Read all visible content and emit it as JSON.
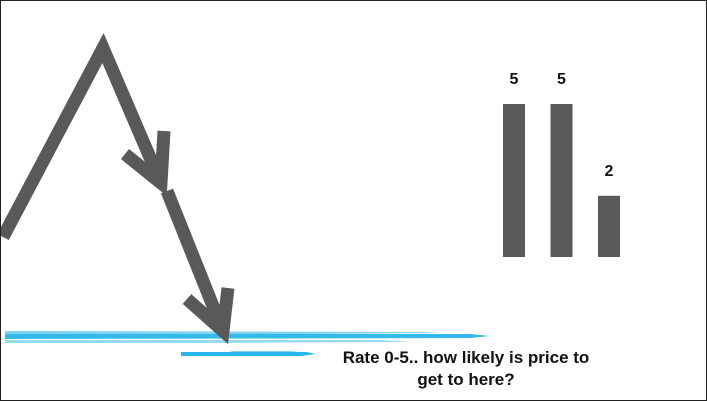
{
  "chart_data": {
    "type": "bar",
    "categories": [
      "",
      "",
      ""
    ],
    "values": [
      5,
      5,
      2
    ],
    "ylim": [
      0,
      5
    ],
    "title": "",
    "xlabel": "",
    "ylabel": "",
    "grid": false,
    "bar_color": "#5a5a5a"
  },
  "caption": {
    "line1": "Rate 0-5.. how likely is price to",
    "line2": "get to here?"
  },
  "colors": {
    "arrow": "#595959",
    "target_line": "#29b6e8",
    "text": "#111111"
  }
}
